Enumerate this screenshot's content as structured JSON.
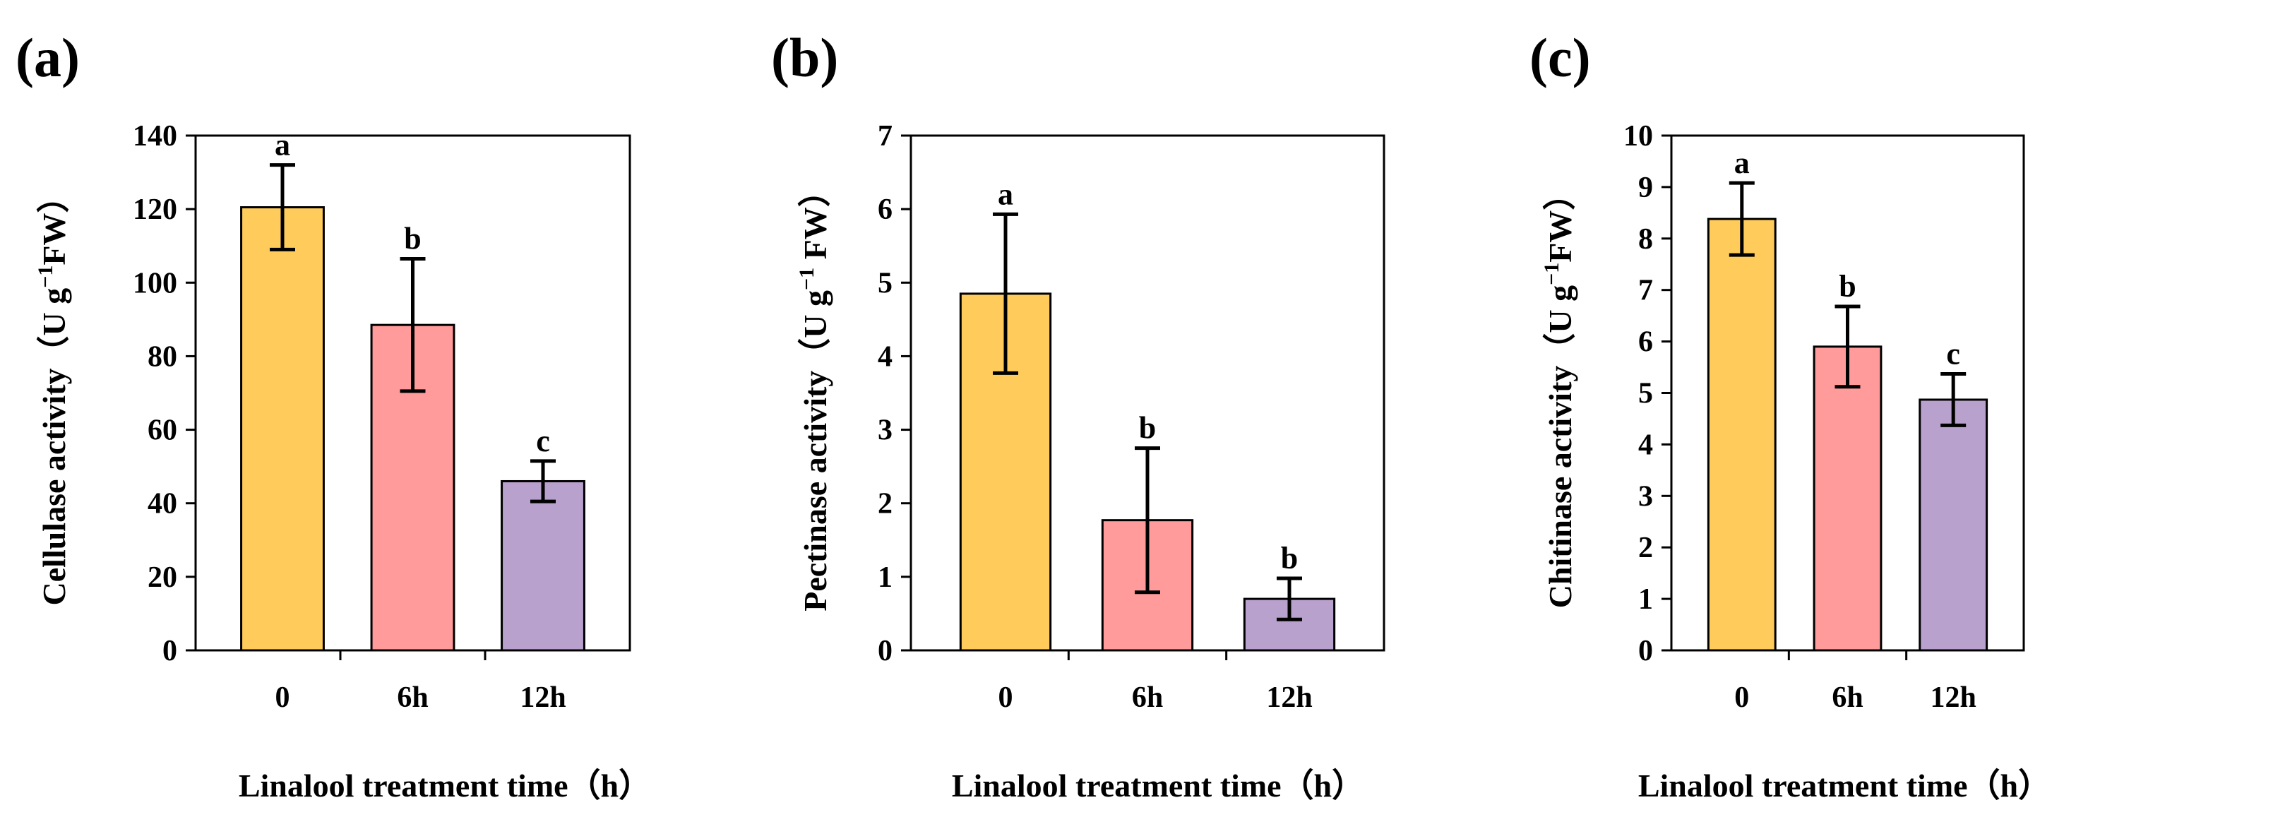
{
  "colors": {
    "bar_0": "#FFCC5C",
    "bar_6h": "#FF9B9B",
    "bar_12h": "#B8A1CC",
    "axis": "#000000"
  },
  "chart_data": [
    {
      "type": "bar",
      "panel_label": "(a)",
      "categories": [
        "0",
        "6h",
        "12h"
      ],
      "values": [
        120.5,
        88.5,
        46
      ],
      "errors": [
        11.5,
        18,
        5.5
      ],
      "significance": [
        "a",
        "b",
        "c"
      ],
      "xlabel": "Linalool treatment time（h）",
      "ylabel_main": "Cellulase activity（U g",
      "ylabel_sup": "−1",
      "ylabel_end": "FW）",
      "ylim": [
        0,
        140
      ],
      "yticks": [
        "0",
        "20",
        "40",
        "60",
        "80",
        "100",
        "120",
        "140"
      ],
      "grid": false,
      "legend": "none"
    },
    {
      "type": "bar",
      "panel_label": "(b)",
      "categories": [
        "0",
        "6h",
        "12h"
      ],
      "values": [
        4.85,
        1.77,
        0.7
      ],
      "errors": [
        1.08,
        0.98,
        0.28
      ],
      "significance": [
        "a",
        "b",
        "b"
      ],
      "xlabel": "Linalool treatment time（h）",
      "ylabel_main": "Pectinase activity（U g",
      "ylabel_sup": "−1",
      "ylabel_end": " FW）",
      "ylim": [
        0,
        7
      ],
      "yticks": [
        "0",
        "1",
        "2",
        "3",
        "4",
        "5",
        "6",
        "7"
      ],
      "grid": false,
      "legend": "none"
    },
    {
      "type": "bar",
      "panel_label": "(c)",
      "categories": [
        "0",
        "6h",
        "12h"
      ],
      "values": [
        8.38,
        5.9,
        4.87
      ],
      "errors": [
        0.7,
        0.78,
        0.5
      ],
      "significance": [
        "a",
        "b",
        "c"
      ],
      "xlabel": "Linalool treatment time（h）",
      "ylabel_main": "Chitinase activity（U g",
      "ylabel_sup": "−1",
      "ylabel_end": "FW）",
      "ylim": [
        0,
        10
      ],
      "yticks": [
        "0",
        "1",
        "2",
        "3",
        "4",
        "5",
        "6",
        "7",
        "8",
        "9",
        "10"
      ],
      "grid": false,
      "legend": "none"
    }
  ]
}
